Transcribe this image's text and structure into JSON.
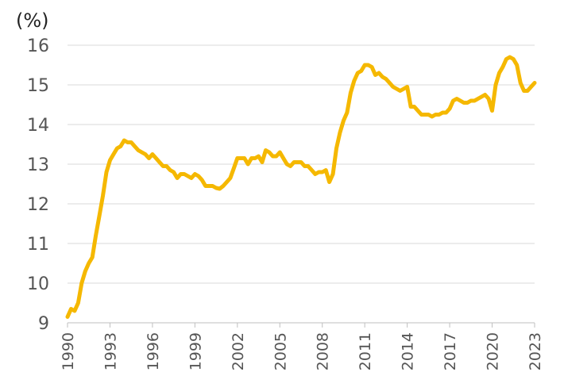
{
  "chart_data": {
    "type": "line",
    "title": "",
    "xlabel": "",
    "ylabel": "(%)",
    "ylim": [
      9,
      16
    ],
    "xlim": [
      1990,
      2023
    ],
    "y_ticks": [
      "9",
      "10",
      "11",
      "12",
      "13",
      "14",
      "15",
      "16"
    ],
    "x_ticks": [
      "1990",
      "1993",
      "1996",
      "1999",
      "2002",
      "2005",
      "2008",
      "2011",
      "2014",
      "2017",
      "2020",
      "2023"
    ],
    "grid": "horizontal",
    "legend": "none",
    "series": [
      {
        "color": "#F5B800",
        "x": [
          1990.0,
          1990.25,
          1990.5,
          1990.75,
          1991.0,
          1991.25,
          1991.5,
          1991.75,
          1992.0,
          1992.25,
          1992.5,
          1992.75,
          1993.0,
          1993.25,
          1993.5,
          1993.75,
          1994.0,
          1994.25,
          1994.5,
          1994.75,
          1995.0,
          1995.25,
          1995.5,
          1995.75,
          1996.0,
          1996.25,
          1996.5,
          1996.75,
          1997.0,
          1997.25,
          1997.5,
          1997.75,
          1998.0,
          1998.25,
          1998.5,
          1998.75,
          1999.0,
          1999.25,
          1999.5,
          1999.75,
          2000.0,
          2000.25,
          2000.5,
          2000.75,
          2001.0,
          2001.25,
          2001.5,
          2001.75,
          2002.0,
          2002.25,
          2002.5,
          2002.75,
          2003.0,
          2003.25,
          2003.5,
          2003.75,
          2004.0,
          2004.25,
          2004.5,
          2004.75,
          2005.0,
          2005.25,
          2005.5,
          2005.75,
          2006.0,
          2006.25,
          2006.5,
          2006.75,
          2007.0,
          2007.25,
          2007.5,
          2007.75,
          2008.0,
          2008.25,
          2008.5,
          2008.75,
          2009.0,
          2009.25,
          2009.5,
          2009.75,
          2010.0,
          2010.25,
          2010.5,
          2010.75,
          2011.0,
          2011.25,
          2011.5,
          2011.75,
          2012.0,
          2012.25,
          2012.5,
          2012.75,
          2013.0,
          2013.25,
          2013.5,
          2013.75,
          2014.0,
          2014.25,
          2014.5,
          2014.75,
          2015.0,
          2015.25,
          2015.5,
          2015.75,
          2016.0,
          2016.25,
          2016.5,
          2016.75,
          2017.0,
          2017.25,
          2017.5,
          2017.75,
          2018.0,
          2018.25,
          2018.5,
          2018.75,
          2019.0,
          2019.25,
          2019.5,
          2019.75,
          2020.0,
          2020.25,
          2020.5,
          2020.75,
          2021.0,
          2021.25,
          2021.5,
          2021.75,
          2022.0,
          2022.25,
          2022.5,
          2022.75,
          2023.0
        ],
        "values": [
          9.15,
          9.35,
          9.3,
          9.5,
          10.0,
          10.3,
          10.5,
          10.65,
          11.2,
          11.7,
          12.2,
          12.8,
          13.1,
          13.25,
          13.4,
          13.45,
          13.6,
          13.55,
          13.55,
          13.45,
          13.35,
          13.3,
          13.25,
          13.15,
          13.25,
          13.15,
          13.05,
          12.95,
          12.95,
          12.85,
          12.8,
          12.65,
          12.75,
          12.75,
          12.7,
          12.65,
          12.75,
          12.7,
          12.6,
          12.45,
          12.45,
          12.45,
          12.4,
          12.38,
          12.45,
          12.55,
          12.65,
          12.9,
          13.15,
          13.15,
          13.15,
          13.0,
          13.15,
          13.15,
          13.2,
          13.05,
          13.35,
          13.3,
          13.2,
          13.2,
          13.3,
          13.15,
          13.0,
          12.95,
          13.05,
          13.05,
          13.05,
          12.95,
          12.95,
          12.85,
          12.75,
          12.8,
          12.8,
          12.85,
          12.55,
          12.75,
          13.4,
          13.8,
          14.1,
          14.3,
          14.8,
          15.1,
          15.3,
          15.35,
          15.5,
          15.5,
          15.45,
          15.25,
          15.3,
          15.2,
          15.15,
          15.05,
          14.95,
          14.9,
          14.85,
          14.9,
          14.95,
          14.45,
          14.45,
          14.35,
          14.25,
          14.25,
          14.25,
          14.2,
          14.25,
          14.25,
          14.3,
          14.3,
          14.4,
          14.6,
          14.65,
          14.6,
          14.55,
          14.55,
          14.6,
          14.6,
          14.65,
          14.7,
          14.75,
          14.65,
          14.35,
          15.0,
          15.3,
          15.45,
          15.65,
          15.7,
          15.65,
          15.5,
          15.05,
          14.85,
          14.85,
          14.95,
          15.05
        ]
      }
    ]
  }
}
